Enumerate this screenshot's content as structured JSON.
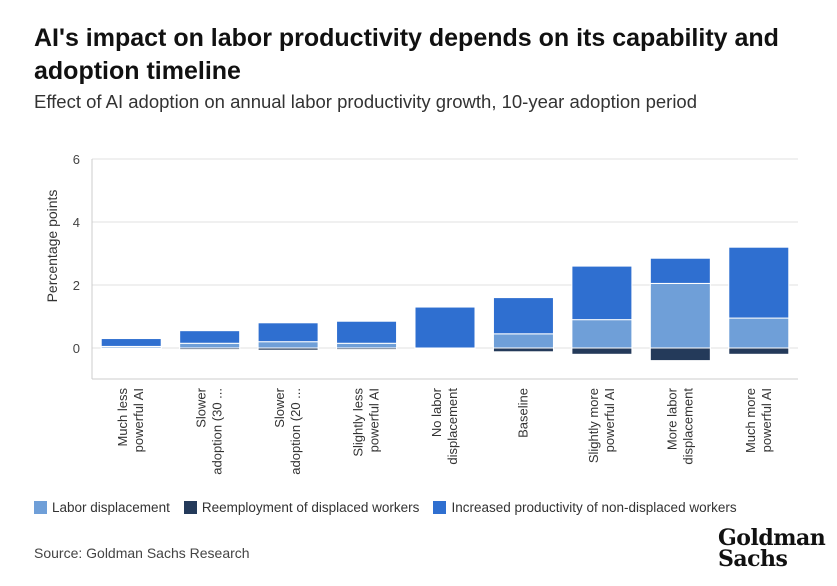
{
  "chart_data": {
    "type": "bar",
    "stacked": true,
    "title": "AI's impact on labor productivity depends on its capability and adoption timeline",
    "subtitle": "Effect of AI adoption on annual labor productivity growth, 10-year adoption period",
    "xlabel": "",
    "ylabel": "Percentage points",
    "ylim": [
      -1,
      6
    ],
    "yticks": [
      0,
      2,
      4,
      6
    ],
    "grid": true,
    "legend_position": "bottom",
    "categories": [
      [
        "Much less",
        "powerful AI"
      ],
      [
        "Slower",
        "adoption (30 ..."
      ],
      [
        "Slower",
        "adoption (20 ..."
      ],
      [
        "Slightly less",
        "powerful AI"
      ],
      [
        "No labor",
        "displacement"
      ],
      [
        "Baseline"
      ],
      [
        "Slightly more",
        "powerful AI"
      ],
      [
        "More labor",
        "displacement"
      ],
      [
        "Much more",
        "powerful AI"
      ]
    ],
    "series": [
      {
        "name": "Labor displacement",
        "color": "#6f9fd8",
        "values": [
          0.05,
          0.15,
          0.2,
          0.15,
          0.0,
          0.45,
          0.9,
          2.05,
          0.95
        ]
      },
      {
        "name": "Reemployment of displaced workers",
        "color": "#243a5a",
        "values": [
          -0.03,
          -0.05,
          -0.07,
          -0.05,
          0.0,
          -0.12,
          -0.2,
          -0.4,
          -0.2
        ]
      },
      {
        "name": "Increased productivity of non-displaced workers",
        "color": "#2f6fd0",
        "values": [
          0.25,
          0.4,
          0.6,
          0.7,
          1.3,
          1.15,
          1.7,
          0.8,
          2.25
        ]
      }
    ]
  },
  "source": "Source: Goldman Sachs Research",
  "logo": {
    "line1": "Goldman",
    "line2": "Sachs"
  }
}
